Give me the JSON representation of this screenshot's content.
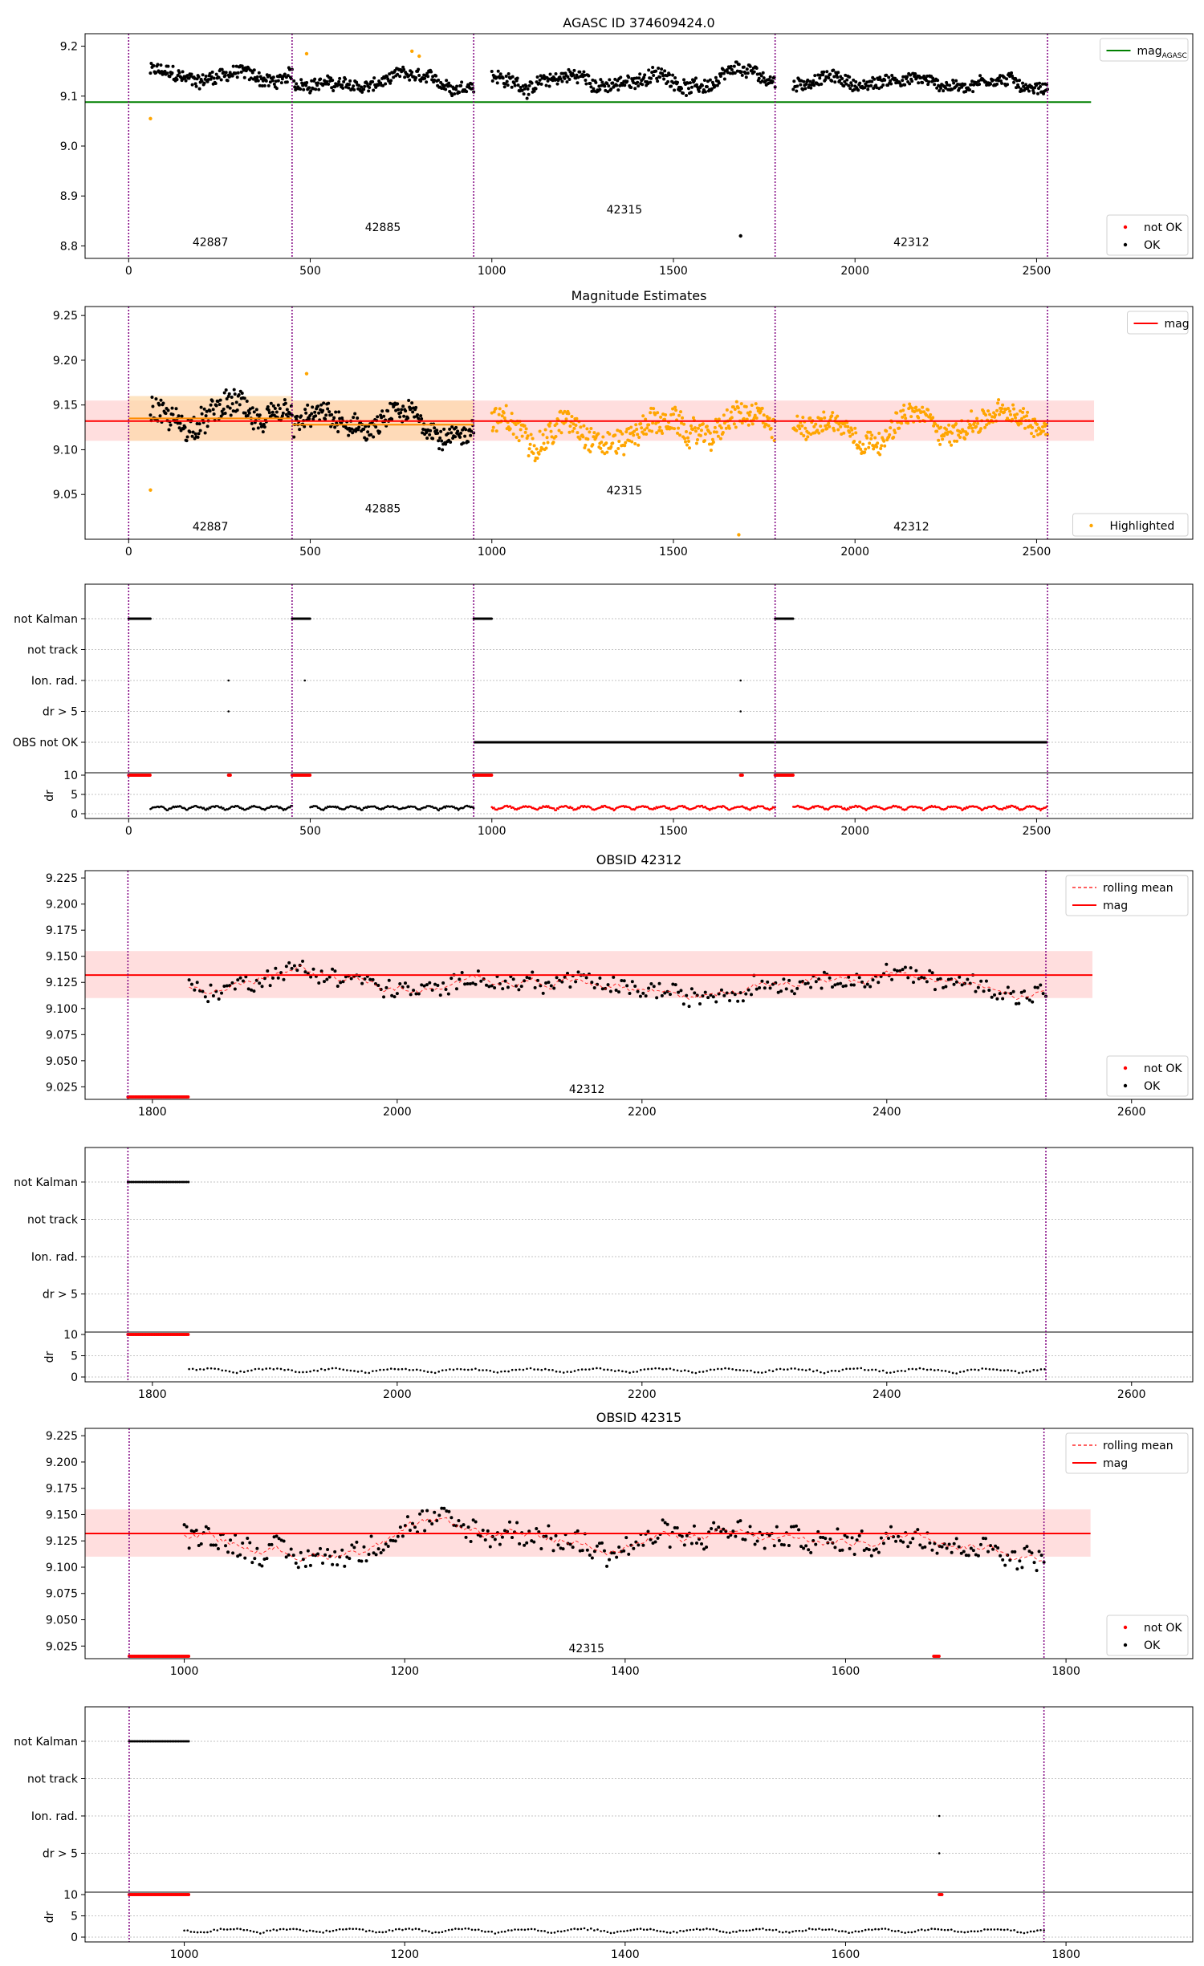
{
  "figure": {
    "agasc_id_title": "AGASC ID 374609424.0"
  },
  "colors": {
    "ok": "#000000",
    "not_ok": "#ff0000",
    "highlight": "#ffa500",
    "agasc_line": "#008000",
    "mag_line": "#ff0000",
    "obs_divider": "#800080",
    "mag_band": "#ffd6d6",
    "obs_band": "#fdd9a8",
    "obs_mean": "#ff8c00"
  },
  "chart_data": [
    {
      "type": "scatter",
      "id": "p1",
      "title": "AGASC ID 374609424.0",
      "xlim": [
        -120,
        2930
      ],
      "ylim": [
        8.775,
        9.225
      ],
      "xticks": [
        0,
        500,
        1000,
        1500,
        2000,
        2500
      ],
      "yticks": [
        8.8,
        8.9,
        9.0,
        9.1,
        9.2
      ],
      "ytick_labels": [
        "8.8",
        "8.9",
        "9.0",
        "9.1",
        "9.2"
      ],
      "obs_lines": [
        0,
        450,
        950,
        1780,
        2530
      ],
      "obs_labels": [
        {
          "text": "42887",
          "x": 225,
          "y": 8.8
        },
        {
          "text": "42885",
          "x": 700,
          "y": 8.83
        },
        {
          "text": "42315",
          "x": 1365,
          "y": 8.865
        },
        {
          "text": "42312",
          "x": 2155,
          "y": 8.8
        }
      ],
      "hline": {
        "name": "mag_AGASC",
        "y": 9.088,
        "x": [
          -120,
          2650
        ]
      },
      "legend_top": [
        {
          "label": "mag",
          "sub": "AGASC",
          "style": "line",
          "color": "#008000"
        }
      ],
      "legend_bottom": [
        {
          "label": "not OK",
          "style": "dot",
          "color": "#ff0000"
        },
        {
          "label": "OK",
          "style": "dot",
          "color": "#000000"
        }
      ],
      "segments": [
        {
          "x0": 60,
          "x1": 450,
          "mean": 9.14,
          "amp": 0.03,
          "color": "ok"
        },
        {
          "x0": 455,
          "x1": 950,
          "mean": 9.125,
          "amp": 0.025,
          "color": "ok"
        },
        {
          "x0": 1000,
          "x1": 1780,
          "mean": 9.13,
          "amp": 0.03,
          "color": "ok"
        },
        {
          "x0": 1830,
          "x1": 2530,
          "mean": 9.13,
          "amp": 0.025,
          "color": "ok"
        }
      ],
      "extra_points": [
        {
          "x": 60,
          "y": 9.055,
          "c": "highlight"
        },
        {
          "x": 490,
          "y": 9.185,
          "c": "highlight"
        },
        {
          "x": 780,
          "y": 9.19,
          "c": "highlight"
        },
        {
          "x": 800,
          "y": 9.18,
          "c": "highlight"
        },
        {
          "x": 1685,
          "y": 8.82,
          "c": "ok"
        }
      ]
    },
    {
      "type": "scatter",
      "id": "p2",
      "title": "Magnitude Estimates",
      "xlim": [
        -120,
        2930
      ],
      "ylim": [
        9.0,
        9.26
      ],
      "xticks": [
        0,
        500,
        1000,
        1500,
        2000,
        2500
      ],
      "yticks": [
        9.05,
        9.1,
        9.15,
        9.2,
        9.25
      ],
      "ytick_labels": [
        "9.05",
        "9.10",
        "9.15",
        "9.20",
        "9.25"
      ],
      "obs_lines": [
        0,
        450,
        950,
        1780,
        2530
      ],
      "obs_labels": [
        {
          "text": "42887",
          "x": 225,
          "y": 9.01
        },
        {
          "text": "42885",
          "x": 700,
          "y": 9.03
        },
        {
          "text": "42315",
          "x": 1365,
          "y": 9.05
        },
        {
          "text": "42312",
          "x": 2155,
          "y": 9.01
        }
      ],
      "mag": {
        "value": 9.132,
        "band": [
          9.11,
          9.155
        ]
      },
      "obs_bands": [
        {
          "x0": 0,
          "x1": 450,
          "lo": 9.11,
          "hi": 9.16,
          "mean": 9.135
        },
        {
          "x0": 450,
          "x1": 950,
          "lo": 9.11,
          "hi": 9.155,
          "mean": 9.128
        }
      ],
      "legend_top": [
        {
          "label": "mag",
          "style": "line",
          "color": "#ff0000"
        }
      ],
      "legend_bottom": [
        {
          "label": "Highlighted",
          "style": "dot",
          "color": "#ffa500"
        }
      ],
      "segments": [
        {
          "x0": 60,
          "x1": 450,
          "mean": 9.135,
          "amp": 0.03,
          "color": "ok"
        },
        {
          "x0": 455,
          "x1": 950,
          "mean": 9.125,
          "amp": 0.025,
          "color": "ok"
        },
        {
          "x0": 1000,
          "x1": 1780,
          "mean": 9.125,
          "amp": 0.03,
          "color": "highlight"
        },
        {
          "x0": 1830,
          "x1": 2530,
          "mean": 9.13,
          "amp": 0.025,
          "color": "highlight"
        }
      ],
      "extra_points": [
        {
          "x": 60,
          "y": 9.055,
          "c": "highlight"
        },
        {
          "x": 490,
          "y": 9.185,
          "c": "highlight"
        },
        {
          "x": 1680,
          "y": 9.005,
          "c": "highlight"
        }
      ]
    },
    {
      "type": "flags",
      "id": "p3",
      "xlim": [
        -120,
        2930
      ],
      "xticks": [
        0,
        500,
        1000,
        1500,
        2000,
        2500
      ],
      "flag_labels": [
        "not Kalman",
        "not track",
        "Ion. rad.",
        "dr > 5",
        "OBS not OK"
      ],
      "dr_ticks": [
        "10",
        "5",
        "0"
      ],
      "dr_label": "dr",
      "obs_lines": [
        0,
        450,
        950,
        1780,
        2530
      ],
      "not_kalman": [
        [
          0,
          60
        ],
        [
          450,
          500
        ],
        [
          950,
          1000
        ],
        [
          1780,
          1830
        ]
      ],
      "ion_rad": [
        275,
        485,
        1685
      ],
      "dr_gt5": [
        275,
        1685
      ],
      "obs_not_ok": [
        [
          950,
          2530
        ]
      ],
      "dr10": [
        [
          0,
          60
        ],
        [
          275,
          280
        ],
        [
          450,
          500
        ],
        [
          950,
          1000
        ],
        [
          1685,
          1690
        ],
        [
          1780,
          1830
        ]
      ],
      "dr_segments": [
        {
          "x0": 60,
          "x1": 450,
          "c": "ok"
        },
        {
          "x0": 500,
          "x1": 950,
          "c": "ok"
        },
        {
          "x0": 1000,
          "x1": 1780,
          "c": "not_ok"
        },
        {
          "x0": 1830,
          "x1": 2530,
          "c": "not_ok"
        }
      ]
    },
    {
      "type": "scatter",
      "id": "p4",
      "title": "OBSID 42312",
      "xlim": [
        1745,
        2650
      ],
      "ylim": [
        9.013,
        9.232
      ],
      "xticks": [
        1800,
        2000,
        2200,
        2400,
        2600
      ],
      "yticks": [
        9.025,
        9.05,
        9.075,
        9.1,
        9.125,
        9.15,
        9.175,
        9.2,
        9.225
      ],
      "ytick_labels": [
        "9.025",
        "9.050",
        "9.075",
        "9.100",
        "9.125",
        "9.150",
        "9.175",
        "9.200",
        "9.225"
      ],
      "obs_lines": [
        1780,
        2530
      ],
      "obs_labels": [
        {
          "text": "42312",
          "x": 2155,
          "y": 9.019
        }
      ],
      "mag": {
        "value": 9.132,
        "band": [
          9.11,
          9.155
        ]
      },
      "rolling": true,
      "legend_top": [
        {
          "label": "rolling mean",
          "style": "dash",
          "color": "#ff0000"
        },
        {
          "label": "mag",
          "style": "line",
          "color": "#ff0000"
        }
      ],
      "legend_bottom": [
        {
          "label": "not OK",
          "style": "dot",
          "color": "#ff0000"
        },
        {
          "label": "OK",
          "style": "dot",
          "color": "#000000"
        }
      ],
      "segments": [
        {
          "x0": 1830,
          "x1": 2530,
          "mean": 9.125,
          "amp": 0.018,
          "color": "ok"
        }
      ],
      "not_ok_floor": [
        [
          1780,
          1830
        ]
      ]
    },
    {
      "type": "flags",
      "id": "p5",
      "xlim": [
        1745,
        2650
      ],
      "xticks": [
        1800,
        2000,
        2200,
        2400,
        2600
      ],
      "flag_labels": [
        "not Kalman",
        "not track",
        "Ion. rad.",
        "dr > 5"
      ],
      "dr_ticks": [
        "10",
        "5",
        "0"
      ],
      "dr_label": "dr",
      "obs_lines": [
        1780,
        2530
      ],
      "not_kalman": [
        [
          1780,
          1830
        ]
      ],
      "ion_rad": [],
      "dr_gt5": [],
      "obs_not_ok": [],
      "dr10": [
        [
          1780,
          1830
        ]
      ],
      "dr_segments": [
        {
          "x0": 1830,
          "x1": 2530,
          "c": "ok"
        }
      ]
    },
    {
      "type": "scatter",
      "id": "p6",
      "title": "OBSID 42315",
      "xlim": [
        910,
        1915
      ],
      "ylim": [
        9.013,
        9.232
      ],
      "xticks": [
        1000,
        1200,
        1400,
        1600,
        1800
      ],
      "yticks": [
        9.025,
        9.05,
        9.075,
        9.1,
        9.125,
        9.15,
        9.175,
        9.2,
        9.225
      ],
      "ytick_labels": [
        "9.025",
        "9.050",
        "9.075",
        "9.100",
        "9.125",
        "9.150",
        "9.175",
        "9.200",
        "9.225"
      ],
      "obs_lines": [
        950,
        1780
      ],
      "obs_labels": [
        {
          "text": "42315",
          "x": 1365,
          "y": 9.019
        }
      ],
      "mag": {
        "value": 9.132,
        "band": [
          9.11,
          9.155
        ]
      },
      "rolling": true,
      "legend_top": [
        {
          "label": "rolling mean",
          "style": "dash",
          "color": "#ff0000"
        },
        {
          "label": "mag",
          "style": "line",
          "color": "#ff0000"
        }
      ],
      "legend_bottom": [
        {
          "label": "not OK",
          "style": "dot",
          "color": "#ff0000"
        },
        {
          "label": "OK",
          "style": "dot",
          "color": "#000000"
        }
      ],
      "segments": [
        {
          "x0": 1000,
          "x1": 1780,
          "mean": 9.125,
          "amp": 0.025,
          "color": "ok"
        }
      ],
      "not_ok_floor": [
        [
          950,
          1005
        ],
        [
          1680,
          1685
        ]
      ]
    },
    {
      "type": "flags",
      "id": "p7",
      "xlim": [
        910,
        1915
      ],
      "xticks": [
        1000,
        1200,
        1400,
        1600,
        1800
      ],
      "flag_labels": [
        "not Kalman",
        "not track",
        "Ion. rad.",
        "dr > 5"
      ],
      "dr_ticks": [
        "10",
        "5",
        "0"
      ],
      "dr_label": "dr",
      "obs_lines": [
        950,
        1780
      ],
      "not_kalman": [
        [
          950,
          1005
        ]
      ],
      "ion_rad": [
        1685
      ],
      "dr_gt5": [
        1685
      ],
      "obs_not_ok": [],
      "dr10": [
        [
          950,
          1005
        ],
        [
          1685,
          1688
        ]
      ],
      "dr_segments": [
        {
          "x0": 1000,
          "x1": 1780,
          "c": "ok"
        }
      ]
    }
  ]
}
